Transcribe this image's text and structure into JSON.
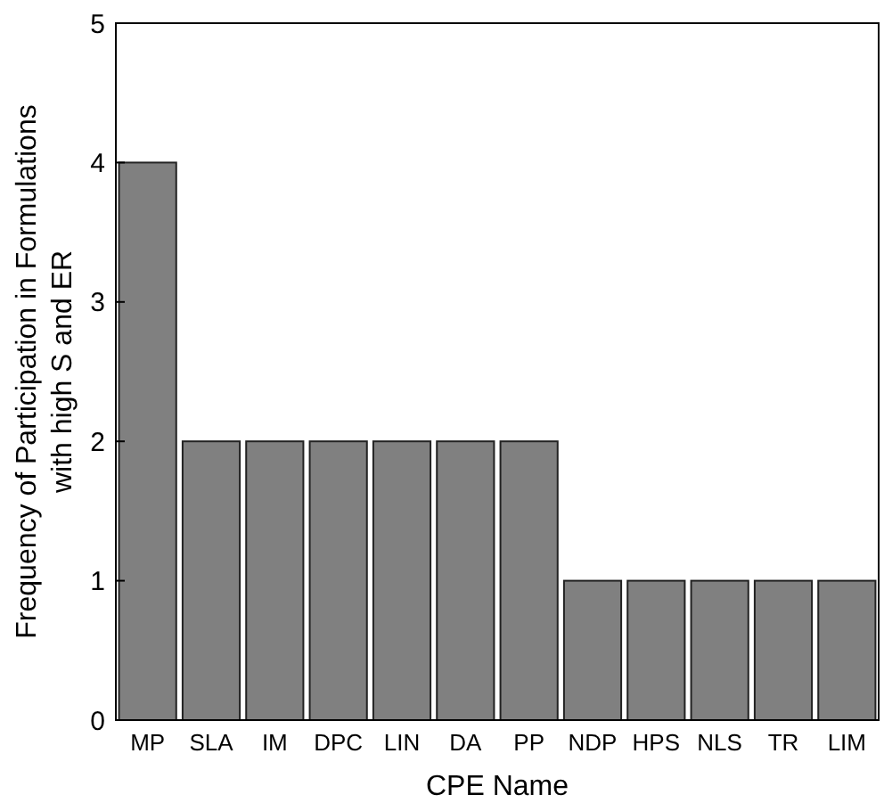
{
  "chart_data": {
    "type": "bar",
    "xlabel": "CPE Name",
    "ylabel": "Frequency of Participation in Formulations\nwith high S and ER",
    "categories": [
      "MP",
      "SLA",
      "IM",
      "DPC",
      "LIN",
      "DA",
      "PP",
      "NDP",
      "HPS",
      "NLS",
      "TR",
      "LIM"
    ],
    "values": [
      4,
      2,
      2,
      2,
      2,
      2,
      2,
      1,
      1,
      1,
      1,
      1
    ],
    "color": "#808080",
    "ylim": [
      0,
      5
    ],
    "yticks": [
      0,
      1,
      2,
      3,
      4,
      5
    ],
    "grid": false
  }
}
